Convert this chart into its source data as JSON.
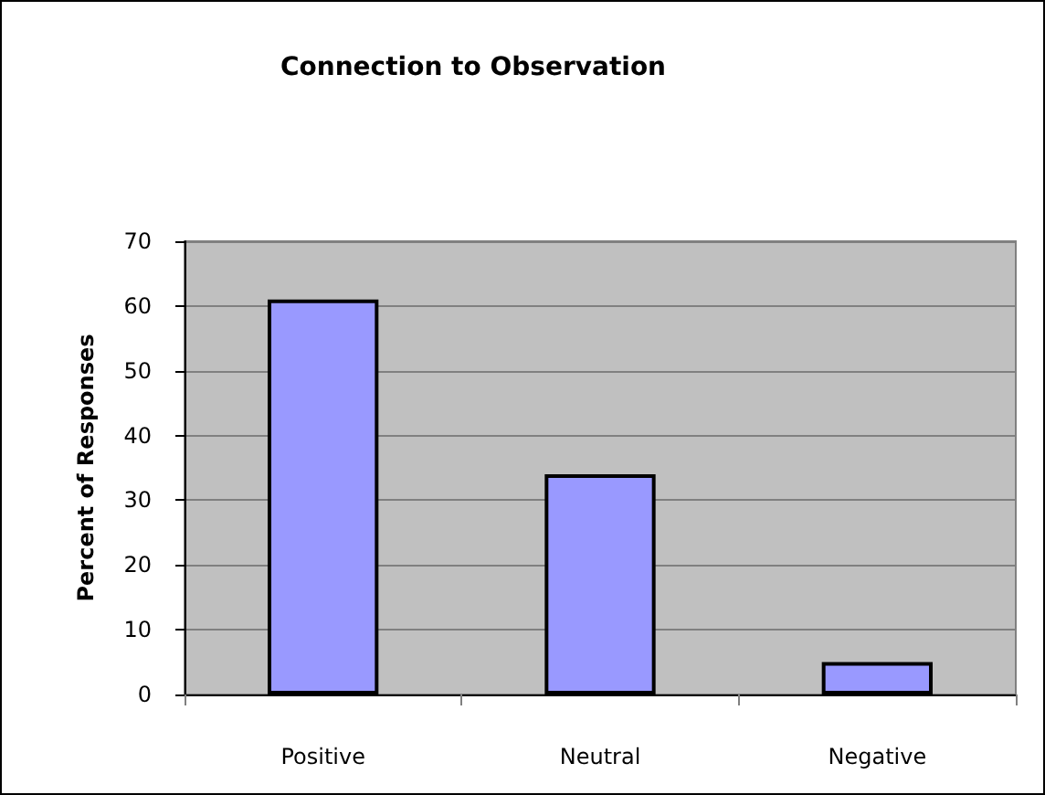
{
  "chart_data": {
    "type": "bar",
    "title": "Connection to Observation",
    "ylabel": "Percent of Responses",
    "categories": [
      "Positive",
      "Neutral",
      "Negative"
    ],
    "values": [
      61,
      34,
      5
    ],
    "color": "#9999ff",
    "ylim": [
      0,
      70
    ],
    "yticks": [
      0,
      10,
      20,
      30,
      40,
      50,
      60,
      70
    ],
    "grid": "y"
  }
}
